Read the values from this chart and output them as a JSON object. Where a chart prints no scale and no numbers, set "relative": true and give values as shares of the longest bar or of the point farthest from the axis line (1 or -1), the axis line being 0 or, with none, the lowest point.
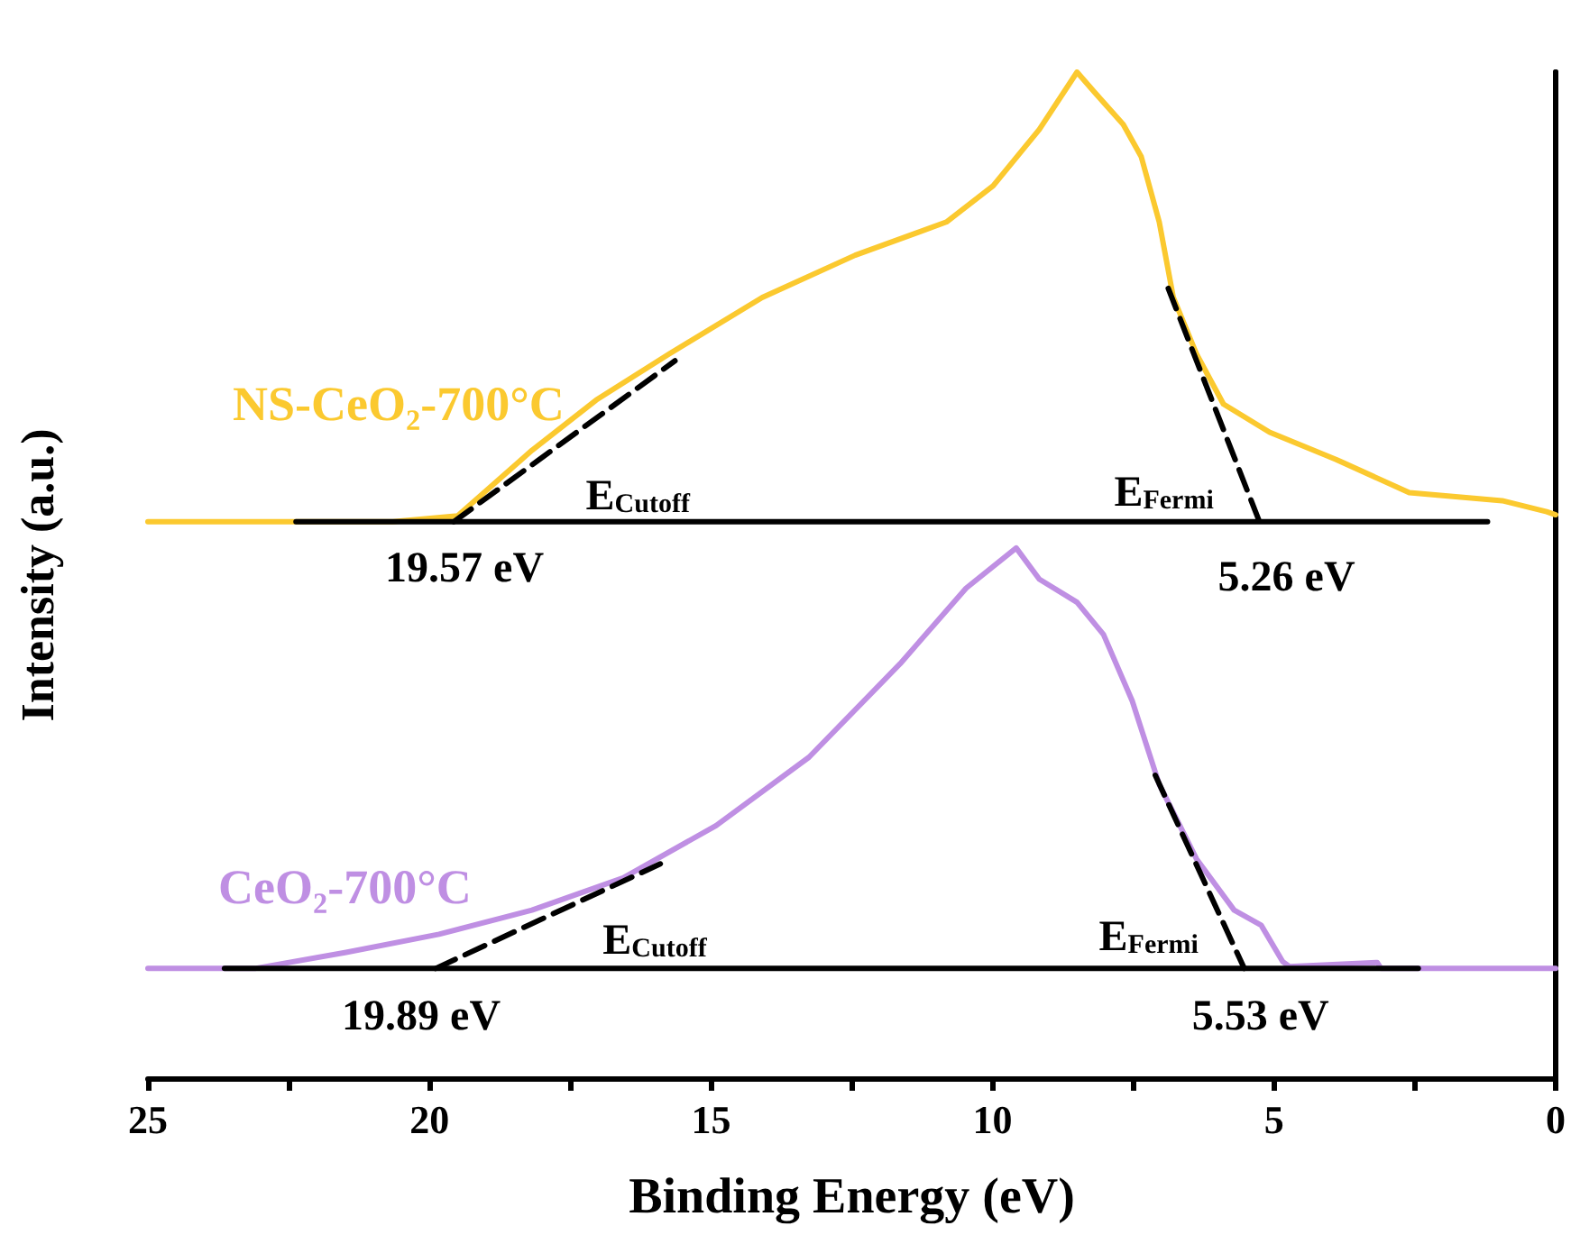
{
  "chart_data": {
    "type": "line",
    "relative": true,
    "xlabel": "Binding Energy (eV)",
    "ylabel": "Intensity (a.u.)",
    "xlim": [
      25,
      0
    ],
    "xticks": [
      25,
      {
        "value": 22.5,
        "label": null
      },
      20,
      {
        "value": 17.5,
        "label": null
      },
      15,
      {
        "value": 12.5,
        "label": null
      },
      10,
      {
        "value": 7.5,
        "label": null
      },
      5,
      {
        "value": 2.5,
        "label": null
      },
      0
    ],
    "grid": false,
    "legend": false,
    "marker": "none",
    "series": [
      {
        "name": "NS-CeO₂-700°C",
        "color": "#fbc92f",
        "x": [
          25,
          20.65,
          19.5,
          18.18,
          17.04,
          15.74,
          14.09,
          12.44,
          10.82,
          9.99,
          9.17,
          8.5,
          8.19,
          7.68,
          7.36,
          7.04,
          6.79,
          6.38,
          5.9,
          5.08,
          3.9,
          2.6,
          0.95,
          0.16,
          0
        ],
        "values": [
          0.553,
          0.553,
          0.559,
          0.624,
          0.674,
          0.72,
          0.776,
          0.818,
          0.851,
          0.887,
          0.943,
          1,
          0.98,
          0.948,
          0.916,
          0.851,
          0.776,
          0.72,
          0.67,
          0.642,
          0.615,
          0.582,
          0.574,
          0.563,
          0.56
        ]
      },
      {
        "name": "CeO₂-700°C",
        "color": "#bf8fe3",
        "x": [
          25,
          23.1,
          21.48,
          19.83,
          18.18,
          16.56,
          14.91,
          13.26,
          11.64,
          10.47,
          9.58,
          9.17,
          8.5,
          8.03,
          7.52,
          7.04,
          6.38,
          5.71,
          5.23,
          4.85,
          4.73,
          3.17,
          3.1,
          0
        ],
        "values": [
          0.109,
          0.109,
          0.125,
          0.143,
          0.167,
          0.199,
          0.251,
          0.319,
          0.412,
          0.487,
          0.527,
          0.496,
          0.473,
          0.441,
          0.375,
          0.292,
          0.218,
          0.167,
          0.152,
          0.116,
          0.111,
          0.115,
          0.109,
          0.109
        ]
      },
      {
        "color": "#000000",
        "line_style": "solid",
        "x": [
          22.37,
          1.21
        ],
        "values": [
          0.553,
          0.553
        ]
      },
      {
        "color": "#000000",
        "line_style": "dashed",
        "x": [
          19.57,
          15.64
        ],
        "values": [
          0.553,
          0.713
        ]
      },
      {
        "color": "#000000",
        "line_style": "dashed",
        "x": [
          6.88,
          5.26
        ],
        "values": [
          0.785,
          0.553
        ]
      },
      {
        "color": "#000000",
        "line_style": "solid",
        "x": [
          23.64,
          2.44
        ],
        "values": [
          0.109,
          0.109
        ]
      },
      {
        "color": "#000000",
        "line_style": "dashed",
        "x": [
          19.89,
          15.9
        ],
        "values": [
          0.109,
          0.213
        ]
      },
      {
        "color": "#000000",
        "line_style": "dashed",
        "x": [
          7.11,
          5.53
        ],
        "values": [
          0.301,
          0.109
        ]
      }
    ],
    "annotations": [
      {
        "text": "E$_{Cutoff}$",
        "x": 16.3,
        "y": 0.553
      },
      {
        "text": "E$_{Fermi}$",
        "x": 5.26,
        "y": 0.553
      },
      {
        "text": "19.57 eV",
        "x": 19.57,
        "y": 0.553
      },
      {
        "text": "5.26 eV",
        "x": 5.26,
        "y": 0.553
      },
      {
        "text": "E$_{Cutoff}$",
        "x": 16.0,
        "y": 0.109
      },
      {
        "text": "E$_{Fermi}$",
        "x": 5.53,
        "y": 0.109
      },
      {
        "text": "19.89 eV",
        "x": 19.89,
        "y": 0.109
      },
      {
        "text": "5.53 eV",
        "x": 5.53,
        "y": 0.109
      }
    ]
  }
}
